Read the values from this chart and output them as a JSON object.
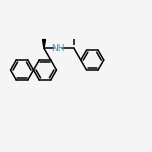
{
  "bg_color": "#f5f5f5",
  "bond_color": "#000000",
  "nh_color": "#3399cc",
  "figsize": [
    1.52,
    1.52
  ],
  "dpi": 100,
  "lw": 1.1,
  "r_ring": 11.5
}
